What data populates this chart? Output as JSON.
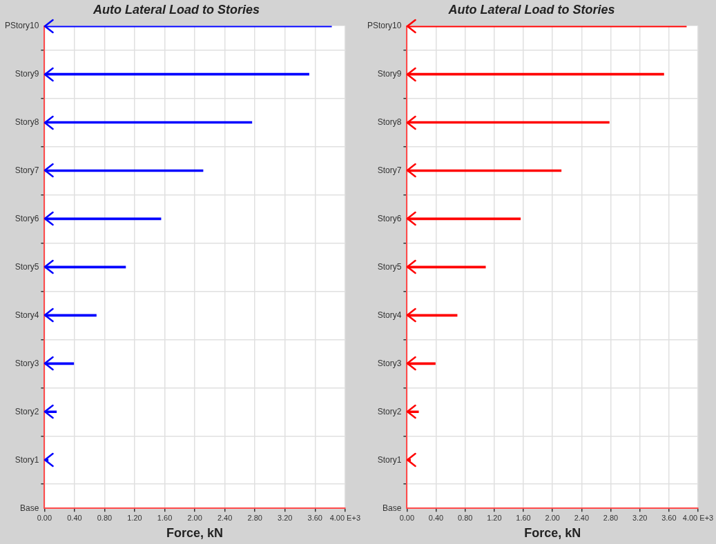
{
  "chart_data": [
    {
      "type": "bar",
      "orientation": "horizontal",
      "title": "Auto Lateral Load to Stories",
      "xlabel": "Force, kN",
      "categories": [
        "PStory10",
        "Story9",
        "Story8",
        "Story7",
        "Story6",
        "Story5",
        "Story4",
        "Story3",
        "Story2",
        "Story1",
        "Base"
      ],
      "values": [
        3.82,
        3.52,
        2.76,
        2.11,
        1.55,
        1.08,
        0.69,
        0.39,
        0.16,
        0.05,
        null
      ],
      "color": "#0000ff",
      "xlim": [
        0,
        4
      ],
      "xticks": [
        {
          "value": 0,
          "label": "0.00"
        },
        {
          "value": 0.4,
          "label": "0.40"
        },
        {
          "value": 0.8,
          "label": "0.80"
        },
        {
          "value": 1.2,
          "label": "1.20"
        },
        {
          "value": 1.6,
          "label": "1.60"
        },
        {
          "value": 2,
          "label": "2.00"
        },
        {
          "value": 2.4,
          "label": "2.40"
        },
        {
          "value": 2.8,
          "label": "2.80"
        },
        {
          "value": 3.2,
          "label": "3.20"
        },
        {
          "value": 3.6,
          "label": "3.60"
        },
        {
          "value": 4,
          "label": "4.00 E+3"
        }
      ],
      "grid": true
    },
    {
      "type": "bar",
      "orientation": "horizontal",
      "title": "Auto Lateral Load to Stories",
      "xlabel": "Force, kN",
      "categories": [
        "PStory10",
        "Story9",
        "Story8",
        "Story7",
        "Story6",
        "Story5",
        "Story4",
        "Story3",
        "Story2",
        "Story1",
        "Base"
      ],
      "values": [
        3.84,
        3.53,
        2.78,
        2.12,
        1.56,
        1.08,
        0.69,
        0.39,
        0.16,
        0.05,
        null
      ],
      "color": "#ff0000",
      "xlim": [
        0,
        4
      ],
      "xticks": [
        {
          "value": 0,
          "label": "0.00"
        },
        {
          "value": 0.4,
          "label": "0.40"
        },
        {
          "value": 0.8,
          "label": "0.80"
        },
        {
          "value": 1.2,
          "label": "1.20"
        },
        {
          "value": 1.6,
          "label": "1.60"
        },
        {
          "value": 2,
          "label": "2.00"
        },
        {
          "value": 2.4,
          "label": "2.40"
        },
        {
          "value": 2.8,
          "label": "2.80"
        },
        {
          "value": 3.2,
          "label": "3.20"
        },
        {
          "value": 3.6,
          "label": "3.60"
        },
        {
          "value": 4,
          "label": "4.00 E+3"
        }
      ],
      "grid": true
    }
  ]
}
